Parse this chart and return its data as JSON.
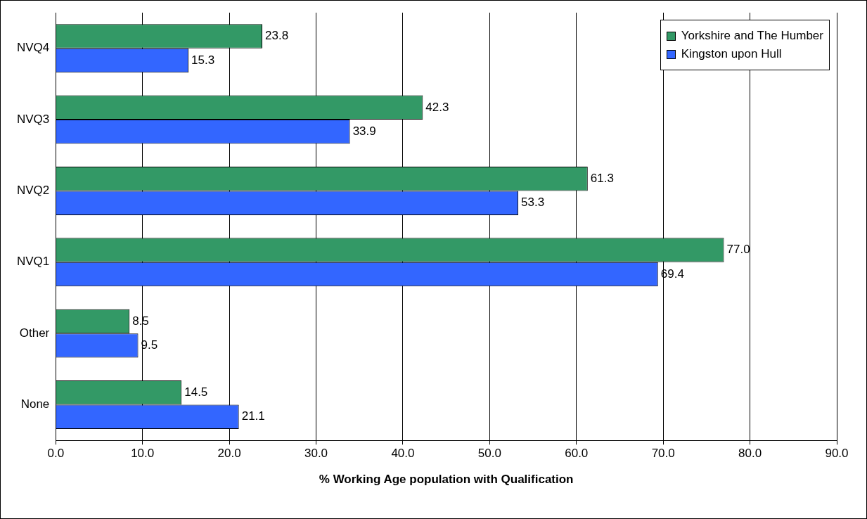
{
  "chart_data": {
    "type": "bar",
    "orientation": "horizontal",
    "xlabel": "% Working Age population with Qualification",
    "categories": [
      "NVQ4",
      "NVQ3",
      "NVQ2",
      "NVQ1",
      "Other",
      "None"
    ],
    "series": [
      {
        "name": "Yorkshire and The Humber",
        "color": "#339966",
        "values": [
          23.8,
          42.3,
          61.3,
          77.0,
          8.5,
          14.5
        ],
        "value_labels": [
          "23.8",
          "42.3",
          "61.3",
          "77.0",
          "8.5",
          "14.5"
        ]
      },
      {
        "name": "Kingston upon Hull",
        "color": "#3366ff",
        "values": [
          15.3,
          33.9,
          53.3,
          69.4,
          9.5,
          21.1
        ],
        "value_labels": [
          "15.3",
          "33.9",
          "53.3",
          "69.4",
          "9.5",
          "21.1"
        ]
      }
    ],
    "xlim": [
      0,
      90
    ],
    "xticks": [
      {
        "value": 0,
        "label": "0.0"
      },
      {
        "value": 10,
        "label": "10.0"
      },
      {
        "value": 20,
        "label": "20.0"
      },
      {
        "value": 30,
        "label": "30.0"
      },
      {
        "value": 40,
        "label": "40.0"
      },
      {
        "value": 50,
        "label": "50.0"
      },
      {
        "value": 60,
        "label": "60.0"
      },
      {
        "value": 70,
        "label": "70.0"
      },
      {
        "value": 80,
        "label": "80.0"
      },
      {
        "value": 90,
        "label": "90.0"
      }
    ],
    "grid": "x",
    "legend": "top right"
  }
}
